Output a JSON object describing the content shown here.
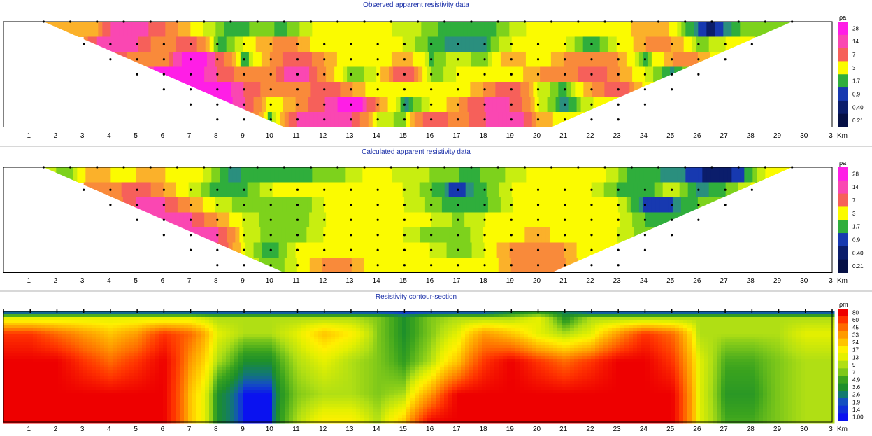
{
  "chart_data": [
    {
      "type": "heatmap",
      "title": "Observed apparent resistivity data",
      "x_ticks": [
        "1",
        "2",
        "3",
        "4",
        "5",
        "6",
        "7",
        "8",
        "9",
        "10",
        "11",
        "12",
        "13",
        "14",
        "15",
        "16",
        "17",
        "18",
        "19",
        "20",
        "21",
        "22",
        "23",
        "24",
        "25",
        "26",
        "27",
        "28",
        "29",
        "30",
        "3"
      ],
      "x_unit": "Km",
      "colorbar_unit": "ρa",
      "colorbar_ticks": [
        "28",
        "14",
        "7",
        "3",
        "1.7",
        "0.9",
        "0.40",
        "0.21"
      ],
      "xlim": [
        1.5,
        29.5
      ],
      "levels": [
        {
          "x": [
            1.5,
            2.5,
            3.5,
            4.5,
            5.5,
            6.5,
            7.5,
            8.5,
            9.5,
            10.5,
            11.5,
            12.5,
            13.5,
            14.5,
            15.5,
            16.5,
            17.5,
            18.5,
            19.5,
            20.5,
            21.5,
            22.5,
            23.5,
            24.5,
            25.5,
            26.5,
            27.5,
            28.5,
            29.5
          ],
          "values": [
            7,
            5,
            7,
            20,
            14,
            7,
            3,
            1.2,
            2,
            1.5,
            3,
            3,
            3,
            3,
            2.5,
            1.5,
            1.2,
            1.7,
            3,
            3,
            3,
            3,
            5,
            7,
            1.7,
            0.2,
            1.7,
            1.7,
            1.7
          ]
        },
        {
          "x": [
            3,
            4,
            5,
            6,
            7,
            8,
            9,
            10,
            11,
            12,
            13,
            14,
            15,
            16,
            17,
            18,
            19,
            20,
            21,
            22,
            23,
            24,
            25,
            26,
            27,
            28
          ],
          "values": [
            7,
            20,
            14,
            7,
            14,
            1.2,
            3,
            7,
            7,
            3,
            3,
            3,
            3,
            1.5,
            0.9,
            1.2,
            3,
            3,
            3,
            1.2,
            3,
            7,
            7,
            1.7,
            3,
            3
          ]
        },
        {
          "x": [
            4,
            5,
            6,
            7,
            8,
            9,
            10,
            11,
            12,
            13,
            14,
            15,
            16,
            17,
            18,
            19,
            20,
            21,
            22,
            23,
            24,
            25,
            26,
            27
          ],
          "values": [
            14,
            7,
            7,
            28,
            14,
            0.9,
            7,
            14,
            7,
            3,
            3,
            7,
            1.5,
            3,
            1.7,
            7,
            3,
            7,
            7,
            7,
            1.2,
            7,
            7,
            3
          ]
        },
        {
          "x": [
            5,
            6,
            7,
            8,
            9,
            10,
            11,
            12,
            13,
            14,
            15,
            16,
            17,
            18,
            19,
            20,
            21,
            22,
            23,
            24,
            25,
            26
          ],
          "values": [
            7,
            28,
            28,
            14,
            7,
            7,
            20,
            7,
            1.7,
            3,
            14,
            1.7,
            3,
            3,
            3,
            7,
            7,
            14,
            7,
            3,
            0.9,
            3
          ]
        },
        {
          "x": [
            6,
            7,
            8,
            9,
            10,
            11,
            12,
            13,
            14,
            15,
            16,
            17,
            18,
            19,
            20,
            21,
            22,
            23,
            24,
            25
          ],
          "values": [
            28,
            28,
            28,
            14,
            7,
            7,
            14,
            7,
            3,
            3,
            3,
            3,
            7,
            14,
            3,
            1.2,
            7,
            14,
            3,
            3
          ]
        },
        {
          "x": [
            7,
            8,
            9,
            10,
            11,
            12,
            13,
            14,
            15,
            16,
            17,
            18,
            19,
            20,
            21,
            22,
            23,
            24
          ],
          "values": [
            28,
            28,
            14,
            3,
            7,
            14,
            28,
            7,
            0.9,
            3,
            7,
            14,
            14,
            3,
            0.9,
            3,
            3,
            3
          ]
        },
        {
          "x": [
            8,
            9,
            10,
            11,
            12,
            13,
            14,
            15,
            16,
            17,
            18,
            19,
            20,
            21,
            22,
            23
          ],
          "values": [
            28,
            14,
            0.9,
            14,
            20,
            14,
            3,
            1.7,
            14,
            7,
            14,
            20,
            7,
            3,
            3,
            3
          ]
        }
      ]
    },
    {
      "type": "heatmap",
      "title": "Calculated apparent resistivity data",
      "x_ticks": [
        "1",
        "2",
        "3",
        "4",
        "5",
        "6",
        "7",
        "8",
        "9",
        "10",
        "11",
        "12",
        "13",
        "14",
        "15",
        "16",
        "17",
        "18",
        "19",
        "20",
        "21",
        "22",
        "23",
        "24",
        "25",
        "26",
        "27",
        "28",
        "29",
        "30",
        "3"
      ],
      "x_unit": "Km",
      "colorbar_unit": "ρa",
      "colorbar_ticks": [
        "28",
        "14",
        "7",
        "3",
        "1.7",
        "0.9",
        "0.40",
        "0.21"
      ],
      "xlim": [
        1.5,
        29.5
      ],
      "levels": [
        {
          "x": [
            1.5,
            2.5,
            3.5,
            4.5,
            5.5,
            6.5,
            7.5,
            8.5,
            9.5,
            10.5,
            11.5,
            12.5,
            13.5,
            14.5,
            15.5,
            16.5,
            17.5,
            18.5,
            19.5,
            20.5,
            21.5,
            22.5,
            23.5,
            24.5,
            25.5,
            26.5,
            27.5,
            28.5,
            29.5
          ],
          "values": [
            3,
            1.7,
            7,
            3,
            7,
            3,
            3,
            0.9,
            1.7,
            1.2,
            1.7,
            2,
            3,
            3,
            2.5,
            2,
            1.5,
            2,
            3,
            3,
            3,
            3,
            1.5,
            1.2,
            0.9,
            0.2,
            0.5,
            3,
            3
          ]
        },
        {
          "x": [
            3,
            4,
            5,
            6,
            7,
            8,
            9,
            10,
            11,
            12,
            13,
            14,
            15,
            16,
            17,
            18,
            19,
            20,
            21,
            22,
            23,
            24,
            25,
            26,
            27,
            28
          ],
          "values": [
            7,
            7,
            14,
            7,
            3,
            1.2,
            1.5,
            3,
            3,
            3,
            3,
            3,
            3,
            1.7,
            0.6,
            1.5,
            3,
            3,
            3,
            3,
            1.7,
            1.2,
            3,
            0.9,
            1.7,
            3
          ]
        },
        {
          "x": [
            4,
            5,
            6,
            7,
            8,
            9,
            10,
            11,
            12,
            13,
            14,
            15,
            16,
            17,
            18,
            19,
            20,
            21,
            22,
            23,
            24,
            25,
            26,
            27
          ],
          "values": [
            7,
            14,
            14,
            7,
            3,
            1.7,
            1.7,
            1.7,
            3,
            3,
            3,
            3,
            2,
            1.2,
            1.5,
            3,
            3,
            3,
            3,
            3,
            0.6,
            0.9,
            1.7,
            1.7
          ]
        },
        {
          "x": [
            5,
            6,
            7,
            8,
            9,
            10,
            11,
            12,
            13,
            14,
            15,
            16,
            17,
            18,
            19,
            20,
            21,
            22,
            23,
            24,
            25,
            26
          ],
          "values": [
            14,
            20,
            14,
            7,
            3,
            1.7,
            1.7,
            3,
            3,
            3,
            3,
            3,
            2,
            3,
            3,
            3,
            3,
            3,
            3,
            1.7,
            1.2,
            1.7
          ]
        },
        {
          "x": [
            6,
            7,
            8,
            9,
            10,
            11,
            12,
            13,
            14,
            15,
            16,
            17,
            18,
            19,
            20,
            21,
            22,
            23,
            24,
            25
          ],
          "values": [
            20,
            14,
            14,
            3,
            1.7,
            2,
            3,
            3,
            3,
            3,
            1.7,
            1.7,
            3,
            3,
            7,
            3,
            3,
            3,
            1.7,
            1.7
          ]
        },
        {
          "x": [
            7,
            8,
            9,
            10,
            11,
            12,
            13,
            14,
            15,
            16,
            17,
            18,
            19,
            20,
            21,
            22,
            23,
            24
          ],
          "values": [
            20,
            14,
            3,
            1.2,
            3,
            3,
            3,
            3,
            3,
            3,
            1.7,
            3,
            7,
            7,
            7,
            3,
            3,
            3
          ]
        },
        {
          "x": [
            8,
            9,
            10,
            11,
            12,
            13,
            14,
            15,
            16,
            17,
            18,
            19,
            20,
            21,
            22,
            23
          ],
          "values": [
            14,
            3,
            1.7,
            3,
            7,
            7,
            3,
            3,
            3,
            3,
            3,
            7,
            7,
            7,
            3,
            3
          ]
        }
      ]
    },
    {
      "type": "heatmap",
      "title": "Resistivity contour-section",
      "x_ticks": [
        "1",
        "2",
        "3",
        "4",
        "5",
        "6",
        "7",
        "8",
        "9",
        "10",
        "11",
        "12",
        "13",
        "14",
        "15",
        "16",
        "17",
        "18",
        "19",
        "20",
        "21",
        "22",
        "23",
        "24",
        "25",
        "26",
        "27",
        "28",
        "29",
        "30",
        "3"
      ],
      "x_unit": "Km",
      "colorbar_unit": "ρm",
      "colorbar_ticks": [
        "80",
        "60",
        "45",
        "33",
        "24",
        "17",
        "13",
        "9",
        "7",
        "4.9",
        "3.6",
        "2.6",
        "1.9",
        "1.4",
        "1.00"
      ],
      "xlim": [
        0,
        31
      ],
      "rows": [
        {
          "x": [
            0,
            2,
            4,
            6,
            8,
            10,
            12,
            14,
            16,
            18,
            20,
            22,
            24,
            26,
            28,
            31
          ],
          "values": [
            1,
            1,
            1,
            1,
            1,
            1,
            1,
            1,
            1,
            1,
            3,
            1,
            1,
            1,
            1,
            1
          ]
        },
        {
          "x": [
            0,
            2,
            4,
            6,
            7,
            8,
            10,
            12,
            13,
            14,
            15,
            16,
            17,
            18,
            19,
            20,
            21,
            22,
            24,
            26,
            28,
            31
          ],
          "values": [
            13,
            13,
            13,
            13,
            13,
            9,
            9,
            9,
            9,
            7,
            3,
            7,
            9,
            9,
            9,
            13,
            3,
            9,
            9,
            9,
            9,
            9
          ]
        },
        {
          "x": [
            0,
            1,
            2,
            3,
            4,
            5,
            6,
            7,
            8,
            9,
            10,
            11,
            12,
            13,
            14,
            15,
            16,
            17,
            18,
            19,
            20,
            21,
            22,
            23,
            24,
            25,
            26,
            27,
            28,
            29,
            30,
            31
          ],
          "values": [
            60,
            60,
            45,
            33,
            24,
            33,
            60,
            45,
            13,
            9,
            9,
            13,
            24,
            17,
            7,
            3,
            7,
            13,
            33,
            24,
            13,
            9,
            13,
            33,
            60,
            45,
            9,
            9,
            9,
            9,
            13,
            13
          ]
        },
        {
          "x": [
            0,
            1,
            2,
            3,
            4,
            5,
            6,
            7,
            8,
            9,
            10,
            11,
            12,
            13,
            14,
            15,
            16,
            17,
            18,
            19,
            20,
            21,
            22,
            23,
            24,
            25,
            26,
            27,
            28,
            29,
            30,
            31
          ],
          "values": [
            80,
            80,
            80,
            60,
            45,
            60,
            80,
            33,
            9,
            3,
            3,
            9,
            13,
            9,
            7,
            4,
            9,
            24,
            60,
            80,
            60,
            45,
            60,
            80,
            80,
            60,
            13,
            4.9,
            4.9,
            7,
            9,
            9
          ]
        },
        {
          "x": [
            0,
            1,
            2,
            3,
            4,
            5,
            6,
            7,
            8,
            9,
            10,
            11,
            12,
            13,
            14,
            15,
            16,
            17,
            18,
            19,
            20,
            21,
            22,
            23,
            24,
            25,
            26,
            27,
            28,
            29,
            30,
            31
          ],
          "values": [
            80,
            80,
            80,
            80,
            80,
            80,
            80,
            24,
            3,
            1,
            1,
            7,
            9,
            9,
            7,
            9,
            33,
            80,
            80,
            80,
            80,
            80,
            80,
            80,
            80,
            80,
            13,
            3.6,
            3.6,
            7,
            9,
            9
          ]
        },
        {
          "x": [
            0,
            1,
            2,
            3,
            4,
            5,
            6,
            7,
            8,
            9,
            10,
            11,
            12,
            13,
            14,
            15,
            16,
            17,
            18,
            19,
            20,
            21,
            22,
            23,
            24,
            25,
            26,
            27,
            28,
            29,
            30,
            31
          ],
          "values": [
            80,
            80,
            80,
            80,
            80,
            80,
            80,
            24,
            3,
            1,
            1,
            9,
            17,
            17,
            9,
            24,
            80,
            80,
            80,
            80,
            80,
            80,
            80,
            80,
            80,
            80,
            13,
            4.9,
            4.9,
            7,
            9,
            9
          ]
        }
      ]
    }
  ]
}
